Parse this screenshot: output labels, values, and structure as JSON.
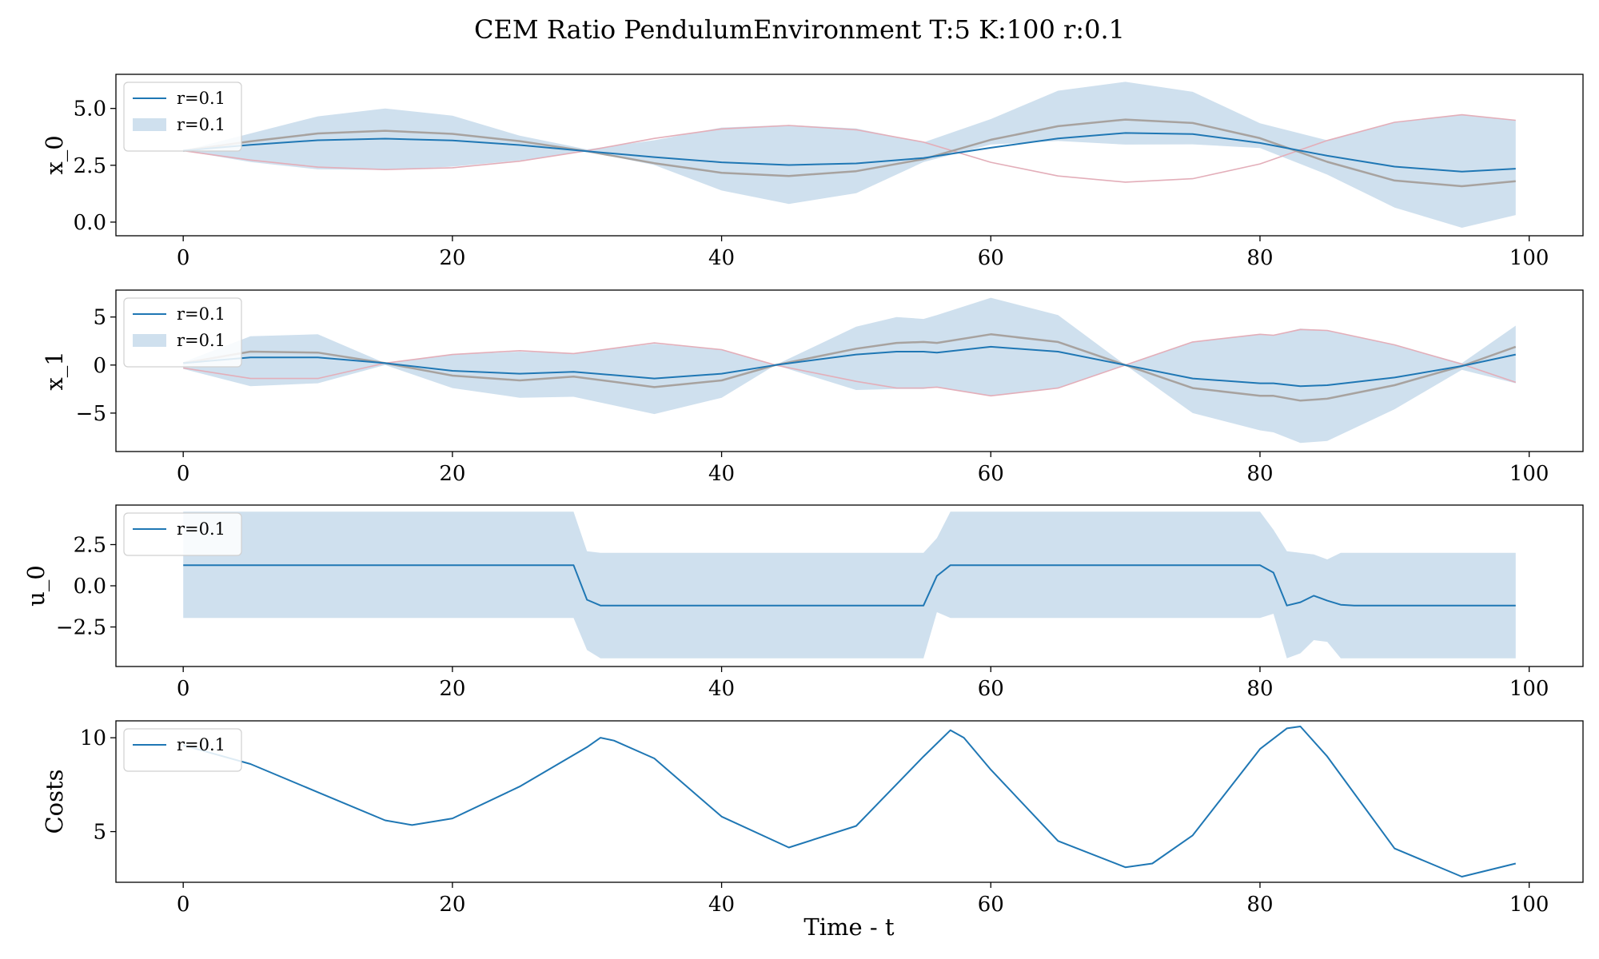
{
  "figure": {
    "title": "CEM Ratio PendulumEnvironment T:5 K:100 r:0.1",
    "xlabel": "Time - t"
  },
  "colors": {
    "mean_line": "#1f77b4",
    "band_fill": "#cfe0ee",
    "upper_curve": "#e3aeb9",
    "mid_curve": "#a7a29f",
    "axes_edge": "#000000"
  },
  "chart_data": [
    {
      "type": "line",
      "ylabel": "x_0",
      "xlim": [
        -5,
        104
      ],
      "ylim": [
        -0.6,
        6.5
      ],
      "xticks": [
        "0",
        "20",
        "40",
        "60",
        "80",
        "100"
      ],
      "yticks": [
        "0.0",
        "2.5",
        "5.0"
      ],
      "legend": {
        "position": "top-left",
        "entries": [
          {
            "label": "r=0.1",
            "kind": "line"
          },
          {
            "label": "r=0.1",
            "kind": "patch"
          }
        ]
      },
      "x": [
        0,
        5,
        10,
        15,
        20,
        25,
        30,
        35,
        40,
        45,
        50,
        55,
        60,
        65,
        70,
        75,
        80,
        85,
        90,
        95,
        99
      ],
      "series": [
        {
          "name": "r=0.1",
          "values": [
            3.14,
            3.4,
            3.6,
            3.67,
            3.59,
            3.39,
            3.12,
            2.86,
            2.63,
            2.51,
            2.58,
            2.82,
            3.27,
            3.68,
            3.92,
            3.87,
            3.48,
            2.92,
            2.44,
            2.22,
            2.35
          ]
        },
        {
          "values": [
            3.14,
            3.55,
            3.9,
            4.02,
            3.88,
            3.56,
            3.12,
            2.59,
            2.17,
            2.03,
            2.24,
            2.77,
            3.62,
            4.22,
            4.51,
            4.36,
            3.69,
            2.65,
            1.83,
            1.58,
            1.8
          ]
        },
        {
          "values": [
            3.14,
            2.73,
            2.42,
            2.31,
            2.39,
            2.68,
            3.14,
            3.68,
            4.1,
            4.25,
            4.06,
            3.52,
            2.63,
            2.03,
            1.76,
            1.91,
            2.56,
            3.59,
            4.39,
            4.72,
            4.48
          ]
        }
      ],
      "band": {
        "name": "r=0.1",
        "lower": [
          3.14,
          2.64,
          2.32,
          2.29,
          2.44,
          2.71,
          3.11,
          2.51,
          1.39,
          0.8,
          1.27,
          2.64,
          3.41,
          3.57,
          3.41,
          3.42,
          3.26,
          2.09,
          0.64,
          -0.25,
          0.31
        ],
        "upper": [
          3.14,
          3.9,
          4.65,
          5.0,
          4.68,
          3.8,
          3.2,
          3.6,
          4.16,
          4.27,
          4.12,
          3.51,
          4.53,
          5.78,
          6.17,
          5.73,
          4.35,
          3.6,
          4.41,
          4.72,
          4.48
        ]
      }
    },
    {
      "type": "line",
      "ylabel": "x_1",
      "xlim": [
        -5,
        104
      ],
      "ylim": [
        -9,
        7.8
      ],
      "xticks": [
        "0",
        "20",
        "40",
        "60",
        "80",
        "100"
      ],
      "yticks": [
        "−5",
        "0",
        "5"
      ],
      "legend": {
        "position": "top-left",
        "entries": [
          {
            "label": "r=0.1",
            "kind": "line"
          },
          {
            "label": "r=0.1",
            "kind": "patch"
          }
        ]
      },
      "x": [
        0,
        5,
        10,
        15,
        20,
        25,
        29,
        35,
        40,
        44,
        50,
        53,
        55,
        56,
        60,
        65,
        70,
        75,
        80,
        81,
        83,
        85,
        90,
        95,
        99
      ],
      "series": [
        {
          "name": "r=0.1",
          "values": [
            0.2,
            0.8,
            0.8,
            0.2,
            -0.6,
            -0.9,
            -0.7,
            -1.4,
            -0.9,
            0.0,
            1.1,
            1.4,
            1.4,
            1.3,
            1.9,
            1.4,
            0.0,
            -1.4,
            -1.9,
            -1.9,
            -2.2,
            -2.1,
            -1.3,
            -0.1,
            1.1
          ]
        },
        {
          "values": [
            0.2,
            1.4,
            1.3,
            0.2,
            -1.1,
            -1.6,
            -1.2,
            -2.3,
            -1.6,
            0.0,
            1.7,
            2.3,
            2.4,
            2.3,
            3.2,
            2.4,
            0.0,
            -2.4,
            -3.2,
            -3.2,
            -3.7,
            -3.5,
            -2.1,
            -0.1,
            1.9
          ]
        },
        {
          "values": [
            -0.3,
            -1.4,
            -1.4,
            0.2,
            1.1,
            1.5,
            1.2,
            2.3,
            1.6,
            0.0,
            -1.7,
            -2.4,
            -2.4,
            -2.3,
            -3.2,
            -2.4,
            0.0,
            2.4,
            3.2,
            3.1,
            3.7,
            3.6,
            2.1,
            0.1,
            -1.8
          ]
        }
      ],
      "band": {
        "name": "r=0.1",
        "lower": [
          -0.4,
          -2.2,
          -1.9,
          0.0,
          -2.4,
          -3.4,
          -3.3,
          -5.1,
          -3.4,
          0.0,
          -2.6,
          -2.5,
          -2.5,
          -2.3,
          -3.2,
          -2.4,
          0.0,
          -5.0,
          -6.8,
          -7.0,
          -8.1,
          -7.9,
          -4.6,
          -0.5,
          -1.9
        ],
        "upper": [
          0.3,
          3.0,
          3.2,
          0.2,
          1.1,
          1.4,
          1.2,
          2.2,
          1.6,
          0.0,
          4.0,
          5.0,
          4.8,
          5.2,
          7.0,
          5.2,
          0.0,
          2.4,
          3.2,
          3.1,
          3.8,
          3.6,
          2.1,
          0.2,
          4.1
        ]
      }
    },
    {
      "type": "line",
      "ylabel": "u_0",
      "xlim": [
        -5,
        104
      ],
      "ylim": [
        -4.9,
        4.9
      ],
      "xticks": [
        "0",
        "20",
        "40",
        "60",
        "80",
        "100"
      ],
      "yticks": [
        "−2.5",
        "0.0",
        "2.5"
      ],
      "legend": {
        "position": "top-left",
        "entries": [
          {
            "label": "r=0.1",
            "kind": "line"
          }
        ]
      },
      "x": [
        0,
        29,
        30,
        31,
        55,
        56,
        57,
        80,
        81,
        82,
        83,
        84,
        85,
        86,
        87,
        99
      ],
      "series": [
        {
          "name": "r=0.1",
          "values": [
            1.25,
            1.25,
            -0.85,
            -1.2,
            -1.2,
            0.6,
            1.25,
            1.25,
            0.8,
            -1.2,
            -1.0,
            -0.6,
            -0.9,
            -1.15,
            -1.2,
            -1.2
          ]
        }
      ],
      "band": {
        "name": "",
        "lower": [
          -1.95,
          -1.95,
          -3.9,
          -4.4,
          -4.4,
          -1.6,
          -1.95,
          -1.95,
          -1.7,
          -4.4,
          -4.1,
          -3.3,
          -3.4,
          -4.4,
          -4.4,
          -4.4
        ],
        "upper": [
          4.5,
          4.5,
          2.1,
          2.0,
          2.0,
          2.9,
          4.5,
          4.5,
          3.4,
          2.1,
          2.0,
          1.9,
          1.6,
          2.0,
          2.0,
          2.0
        ]
      }
    },
    {
      "type": "line",
      "ylabel": "Costs",
      "xlabel": "Time - t",
      "xlim": [
        -5,
        104
      ],
      "ylim": [
        2.3,
        10.9
      ],
      "xticks": [
        "0",
        "20",
        "40",
        "60",
        "80",
        "100"
      ],
      "yticks": [
        "5",
        "10"
      ],
      "legend": {
        "position": "top-left",
        "entries": [
          {
            "label": "r=0.1",
            "kind": "line"
          }
        ]
      },
      "x": [
        0,
        5,
        10,
        15,
        17,
        20,
        25,
        30,
        31,
        32,
        35,
        40,
        45,
        50,
        55,
        57,
        58,
        60,
        65,
        70,
        72,
        75,
        80,
        82,
        83,
        85,
        90,
        95,
        99
      ],
      "series": [
        {
          "name": "r=0.1",
          "values": [
            9.6,
            8.6,
            7.1,
            5.6,
            5.35,
            5.7,
            7.4,
            9.5,
            10.0,
            9.85,
            8.9,
            5.8,
            4.15,
            5.3,
            9.0,
            10.4,
            10.0,
            8.3,
            4.5,
            3.1,
            3.3,
            4.8,
            9.4,
            10.5,
            10.6,
            9.0,
            4.1,
            2.6,
            3.3
          ]
        }
      ]
    }
  ]
}
